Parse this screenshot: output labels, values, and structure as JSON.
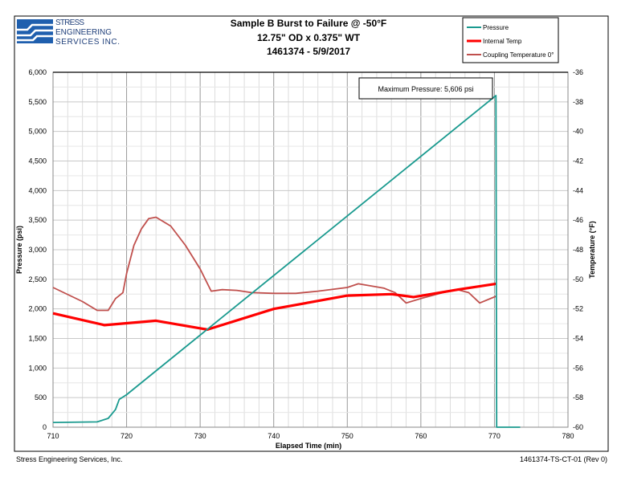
{
  "logo": {
    "line1": "STRESS",
    "line2": "ENGINEERING",
    "line3": "SERVICES INC."
  },
  "footer": {
    "left": "Stress Engineering Services, Inc.",
    "right": "1461374-TS-CT-01 (Rev 0)"
  },
  "chart_data": {
    "type": "line",
    "title": [
      "Sample B Burst to Failure @ -50°F",
      "12.75\" OD x 0.375\" WT",
      "1461374 - 5/9/2017"
    ],
    "xlabel": "Elapsed Time (min)",
    "ylabel": "Pressure (psi)",
    "y2label": "Temperature (°F)",
    "xlim": [
      710,
      780
    ],
    "ylim": [
      0,
      6000
    ],
    "y2lim": [
      -60,
      -36
    ],
    "xticks": [
      "710",
      "720",
      "730",
      "740",
      "750",
      "760",
      "770",
      "780"
    ],
    "yticks": [
      "0",
      "500",
      "1,000",
      "1,500",
      "2,000",
      "2,500",
      "3,000",
      "3,500",
      "4,000",
      "4,500",
      "5,000",
      "5,500",
      "6,000"
    ],
    "y2ticks": [
      "-60",
      "-58",
      "-56",
      "-54",
      "-52",
      "-50",
      "-48",
      "-46",
      "-44",
      "-42",
      "-40",
      "-38",
      "-36"
    ],
    "grid": true,
    "legend_position": "top-right",
    "annotation": "Maximum Pressure: 5,606 psi",
    "series": [
      {
        "name": "Pressure",
        "axis": "left",
        "color": "#1a9a8f",
        "x": [
          710,
          716,
          717.5,
          718.5,
          719,
          720,
          770.2,
          770.3,
          773.5
        ],
        "y": [
          80,
          90,
          150,
          300,
          470,
          550,
          5606,
          0,
          0
        ]
      },
      {
        "name": "Internal Temp",
        "axis": "right",
        "color": "#ff0000",
        "x": [
          710,
          717,
          724,
          731,
          740,
          750,
          756,
          759,
          765,
          770.2
        ],
        "y": [
          -52.3,
          -53.1,
          -52.8,
          -53.4,
          -52.0,
          -51.1,
          -51.0,
          -51.2,
          -50.7,
          -50.3
        ]
      },
      {
        "name": "Coupling Temperature 0°",
        "axis": "right",
        "color": "#c0504d",
        "x": [
          710,
          714,
          716,
          717.5,
          718.5,
          719.5,
          720,
          721,
          722,
          723,
          724,
          726,
          728,
          730,
          731.5,
          733,
          735,
          737,
          740,
          743,
          746,
          750,
          751.5,
          755,
          756.5,
          758,
          760,
          763,
          765,
          766.5,
          768,
          770.2
        ],
        "y": [
          -50.55,
          -51.5,
          -52.1,
          -52.1,
          -51.3,
          -50.9,
          -49.6,
          -47.7,
          -46.6,
          -45.9,
          -45.8,
          -46.4,
          -47.7,
          -49.3,
          -50.8,
          -50.7,
          -50.75,
          -50.9,
          -50.95,
          -50.95,
          -50.8,
          -50.55,
          -50.3,
          -50.6,
          -50.9,
          -51.6,
          -51.3,
          -50.9,
          -50.7,
          -50.9,
          -51.6,
          -51.15
        ]
      }
    ]
  }
}
